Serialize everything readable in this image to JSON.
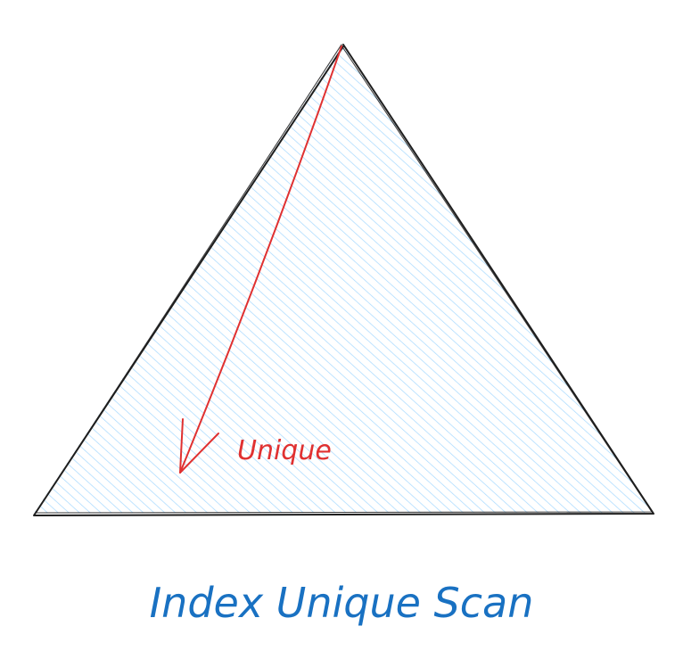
{
  "diagram": {
    "arrow_label": "Unique",
    "caption": "Index Unique Scan",
    "colors": {
      "outline": "#1e1e1e",
      "hatch": "#a5d8ff",
      "fill": "#ffffff",
      "arrow": "#e03131",
      "caption": "#1971c2"
    },
    "icons": {
      "arrow": "arrow-down-left-icon"
    }
  }
}
